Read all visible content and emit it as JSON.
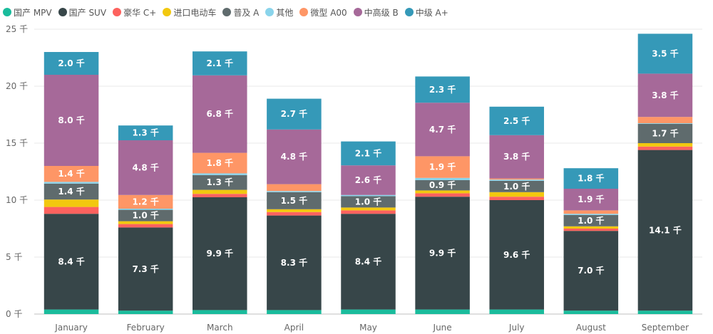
{
  "chart_data": {
    "type": "bar",
    "stacked": true,
    "legend_position": "top-left",
    "grid": true,
    "categories": [
      "January",
      "February",
      "March",
      "April",
      "May",
      "June",
      "July",
      "August",
      "September"
    ],
    "ylim": [
      0,
      25000
    ],
    "y_ticks": [
      {
        "value": 0,
        "label": "0 千"
      },
      {
        "value": 5000,
        "label": "5 千"
      },
      {
        "value": 10000,
        "label": "10 千"
      },
      {
        "value": 15000,
        "label": "15 千"
      },
      {
        "value": 20000,
        "label": "20 千"
      },
      {
        "value": 25000,
        "label": "25 千"
      }
    ],
    "series": [
      {
        "name": "国产 MPV",
        "color": "#1abc9c",
        "values": [
          400,
          300,
          350,
          350,
          400,
          400,
          400,
          300,
          300
        ],
        "labels": [
          "",
          "",
          "",
          "",
          "",
          "",
          "",
          "",
          ""
        ]
      },
      {
        "name": "国产 SUV",
        "color": "#374649",
        "values": [
          8400,
          7300,
          9900,
          8300,
          8400,
          9900,
          9600,
          7000,
          14100
        ],
        "labels": [
          "8.4 千",
          "7.3 千",
          "9.9 千",
          "8.3 千",
          "8.4 千",
          "9.9 千",
          "9.6 千",
          "7.0 千",
          "14.1 千"
        ]
      },
      {
        "name": "豪华 C+",
        "color": "#fd625e",
        "values": [
          600,
          300,
          300,
          300,
          300,
          300,
          300,
          200,
          300
        ],
        "labels": [
          "",
          "",
          "",
          "",
          "",
          "",
          "",
          "",
          ""
        ]
      },
      {
        "name": "进口电动车",
        "color": "#f2c80f",
        "values": [
          650,
          250,
          350,
          250,
          250,
          250,
          400,
          200,
          300
        ],
        "labels": [
          "",
          "",
          "",
          "",
          "",
          "",
          "",
          "",
          ""
        ]
      },
      {
        "name": "普及 A",
        "color": "#5f6b6d",
        "values": [
          1400,
          1000,
          1300,
          1500,
          1000,
          900,
          1000,
          1000,
          1700
        ],
        "labels": [
          "1.4 千",
          "1.0 千",
          "1.3 千",
          "1.5 千",
          "1.0 千",
          "0.9 千",
          "1.0 千",
          "1.0 千",
          "1.7 千"
        ]
      },
      {
        "name": "其他",
        "color": "#8ad4eb",
        "values": [
          150,
          100,
          150,
          100,
          100,
          200,
          100,
          100,
          50
        ],
        "labels": [
          "",
          "",
          "",
          "",
          "",
          "",
          "",
          "",
          ""
        ]
      },
      {
        "name": "微型 A00",
        "color": "#fe9666",
        "values": [
          1400,
          1200,
          1800,
          600,
          0,
          1900,
          100,
          300,
          550
        ],
        "labels": [
          "1.4 千",
          "1.2 千",
          "1.8 千",
          "",
          "",
          "1.9 千",
          "",
          "",
          ""
        ]
      },
      {
        "name": "中高级 B",
        "color": "#a66999",
        "values": [
          8000,
          4800,
          6800,
          4800,
          2600,
          4700,
          3800,
          1900,
          3800
        ],
        "labels": [
          "8.0 千",
          "4.8 千",
          "6.8 千",
          "4.8 千",
          "2.6 千",
          "4.7 千",
          "3.8 千",
          "1.9 千",
          "3.8 千"
        ]
      },
      {
        "name": "中级 A+",
        "color": "#3599b8",
        "values": [
          2000,
          1300,
          2100,
          2700,
          2100,
          2300,
          2500,
          1800,
          3500
        ],
        "labels": [
          "2.0 千",
          "1.3 千",
          "2.1 千",
          "2.7 千",
          "2.1 千",
          "2.3 千",
          "2.5 千",
          "1.8 千",
          "3.5 千"
        ]
      }
    ]
  }
}
